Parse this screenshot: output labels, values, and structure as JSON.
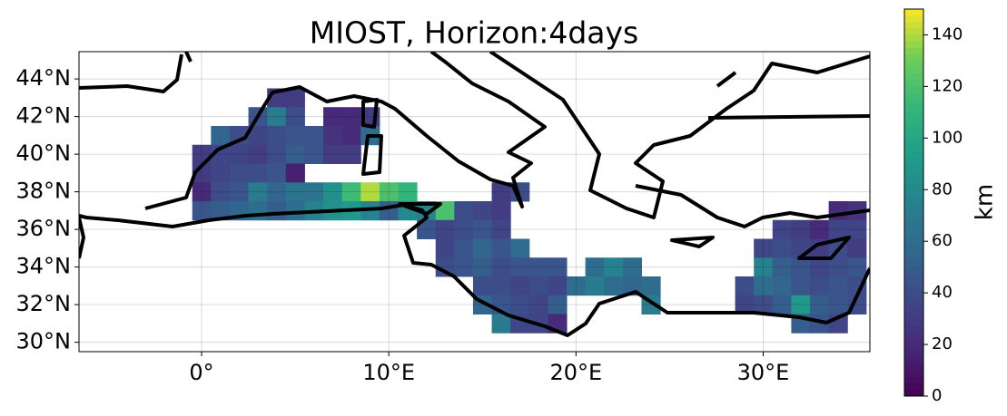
{
  "chart_data": {
    "type": "heatmap",
    "title": "MIOST, Horizon:4days",
    "xlim": [
      -6.55,
      35.7
    ],
    "ylim": [
      29.5,
      45.45
    ],
    "xticks": [
      {
        "value": 0,
        "label": "0°"
      },
      {
        "value": 10,
        "label": "10°E"
      },
      {
        "value": 20,
        "label": "20°E"
      },
      {
        "value": 30,
        "label": "30°E"
      }
    ],
    "yticks": [
      {
        "value": 30,
        "label": "30°N"
      },
      {
        "value": 32,
        "label": "32°N"
      },
      {
        "value": 34,
        "label": "34°N"
      },
      {
        "value": 36,
        "label": "36°N"
      },
      {
        "value": 38,
        "label": "38°N"
      },
      {
        "value": 40,
        "label": "40°N"
      },
      {
        "value": 42,
        "label": "42°N"
      },
      {
        "value": 44,
        "label": "44°N"
      }
    ],
    "grid": true,
    "colormap": "viridis",
    "colorbar": {
      "label": "km",
      "lim": [
        0,
        150
      ],
      "ticks": [
        0,
        20,
        40,
        60,
        80,
        100,
        120,
        140
      ]
    },
    "cells": [
      [
        4,
        43,
        30
      ],
      [
        5,
        43,
        30
      ],
      [
        3,
        42,
        45
      ],
      [
        4,
        42,
        70
      ],
      [
        5,
        42,
        40
      ],
      [
        7,
        42,
        20
      ],
      [
        8,
        42,
        20
      ],
      [
        9,
        42,
        30
      ],
      [
        1,
        41,
        55
      ],
      [
        2,
        41,
        40
      ],
      [
        3,
        41,
        35
      ],
      [
        4,
        41,
        40
      ],
      [
        5,
        41,
        45
      ],
      [
        6,
        41,
        45
      ],
      [
        7,
        41,
        25
      ],
      [
        8,
        41,
        20
      ],
      [
        9,
        41,
        60
      ],
      [
        0,
        40,
        30
      ],
      [
        1,
        40,
        35
      ],
      [
        2,
        40,
        35
      ],
      [
        3,
        40,
        30
      ],
      [
        4,
        40,
        40
      ],
      [
        5,
        40,
        50
      ],
      [
        6,
        40,
        45
      ],
      [
        7,
        40,
        30
      ],
      [
        8,
        40,
        30
      ],
      [
        0,
        39,
        30
      ],
      [
        1,
        39,
        35
      ],
      [
        2,
        39,
        40
      ],
      [
        3,
        39,
        40
      ],
      [
        4,
        39,
        45
      ],
      [
        5,
        39,
        15
      ],
      [
        0,
        38,
        20
      ],
      [
        1,
        38,
        40
      ],
      [
        2,
        38,
        45
      ],
      [
        3,
        38,
        70
      ],
      [
        4,
        38,
        55
      ],
      [
        5,
        38,
        65
      ],
      [
        6,
        38,
        65
      ],
      [
        7,
        38,
        85
      ],
      [
        8,
        38,
        115
      ],
      [
        9,
        38,
        140
      ],
      [
        10,
        38,
        120
      ],
      [
        11,
        38,
        110
      ],
      [
        16,
        38,
        30
      ],
      [
        17,
        38,
        40
      ],
      [
        0,
        37,
        45
      ],
      [
        1,
        37,
        50
      ],
      [
        2,
        37,
        55
      ],
      [
        3,
        37,
        60
      ],
      [
        4,
        37,
        50
      ],
      [
        5,
        37,
        60
      ],
      [
        6,
        37,
        75
      ],
      [
        7,
        37,
        85
      ],
      [
        8,
        37,
        90
      ],
      [
        9,
        37,
        75
      ],
      [
        10,
        37,
        50
      ],
      [
        11,
        37,
        80
      ],
      [
        12,
        37,
        75
      ],
      [
        13,
        37,
        120
      ],
      [
        14,
        37,
        40
      ],
      [
        15,
        37,
        35
      ],
      [
        16,
        37,
        30
      ],
      [
        34,
        37,
        20
      ],
      [
        35,
        37,
        25
      ],
      [
        12,
        36,
        45
      ],
      [
        13,
        36,
        35
      ],
      [
        14,
        36,
        40
      ],
      [
        15,
        36,
        45
      ],
      [
        16,
        36,
        35
      ],
      [
        31,
        36,
        35
      ],
      [
        32,
        36,
        30
      ],
      [
        33,
        36,
        20
      ],
      [
        34,
        36,
        35
      ],
      [
        35,
        36,
        35
      ],
      [
        13,
        35,
        35
      ],
      [
        14,
        35,
        45
      ],
      [
        15,
        35,
        55
      ],
      [
        16,
        35,
        45
      ],
      [
        17,
        35,
        60
      ],
      [
        30,
        35,
        35
      ],
      [
        31,
        35,
        40
      ],
      [
        32,
        35,
        35
      ],
      [
        33,
        35,
        30
      ],
      [
        34,
        35,
        40
      ],
      [
        35,
        35,
        30
      ],
      [
        13,
        34,
        40
      ],
      [
        14,
        34,
        45
      ],
      [
        15,
        34,
        50
      ],
      [
        16,
        34,
        40
      ],
      [
        17,
        34,
        45
      ],
      [
        18,
        34,
        45
      ],
      [
        19,
        34,
        45
      ],
      [
        21,
        34,
        60
      ],
      [
        22,
        34,
        75
      ],
      [
        23,
        34,
        60
      ],
      [
        30,
        34,
        75
      ],
      [
        31,
        34,
        50
      ],
      [
        32,
        34,
        45
      ],
      [
        33,
        34,
        35
      ],
      [
        34,
        34,
        40
      ],
      [
        35,
        34,
        45
      ],
      [
        15,
        33,
        40
      ],
      [
        16,
        33,
        40
      ],
      [
        17,
        33,
        35
      ],
      [
        18,
        33,
        40
      ],
      [
        19,
        33,
        35
      ],
      [
        20,
        33,
        60
      ],
      [
        21,
        33,
        70
      ],
      [
        22,
        33,
        60
      ],
      [
        23,
        33,
        55
      ],
      [
        24,
        33,
        60
      ],
      [
        29,
        33,
        40
      ],
      [
        30,
        33,
        60
      ],
      [
        31,
        33,
        55
      ],
      [
        32,
        33,
        45
      ],
      [
        33,
        33,
        40
      ],
      [
        34,
        33,
        45
      ],
      [
        35,
        33,
        40
      ],
      [
        15,
        32,
        55
      ],
      [
        16,
        32,
        45
      ],
      [
        17,
        32,
        40
      ],
      [
        18,
        32,
        35
      ],
      [
        19,
        32,
        50
      ],
      [
        24,
        32,
        70
      ],
      [
        29,
        32,
        35
      ],
      [
        30,
        32,
        40
      ],
      [
        31,
        32,
        50
      ],
      [
        32,
        32,
        90
      ],
      [
        33,
        32,
        50
      ],
      [
        34,
        32,
        45
      ],
      [
        35,
        32,
        40
      ],
      [
        16,
        31,
        70
      ],
      [
        17,
        31,
        35
      ],
      [
        18,
        31,
        35
      ],
      [
        19,
        31,
        20
      ],
      [
        32,
        31,
        50
      ],
      [
        33,
        31,
        45
      ],
      [
        34,
        31,
        35
      ]
    ]
  }
}
